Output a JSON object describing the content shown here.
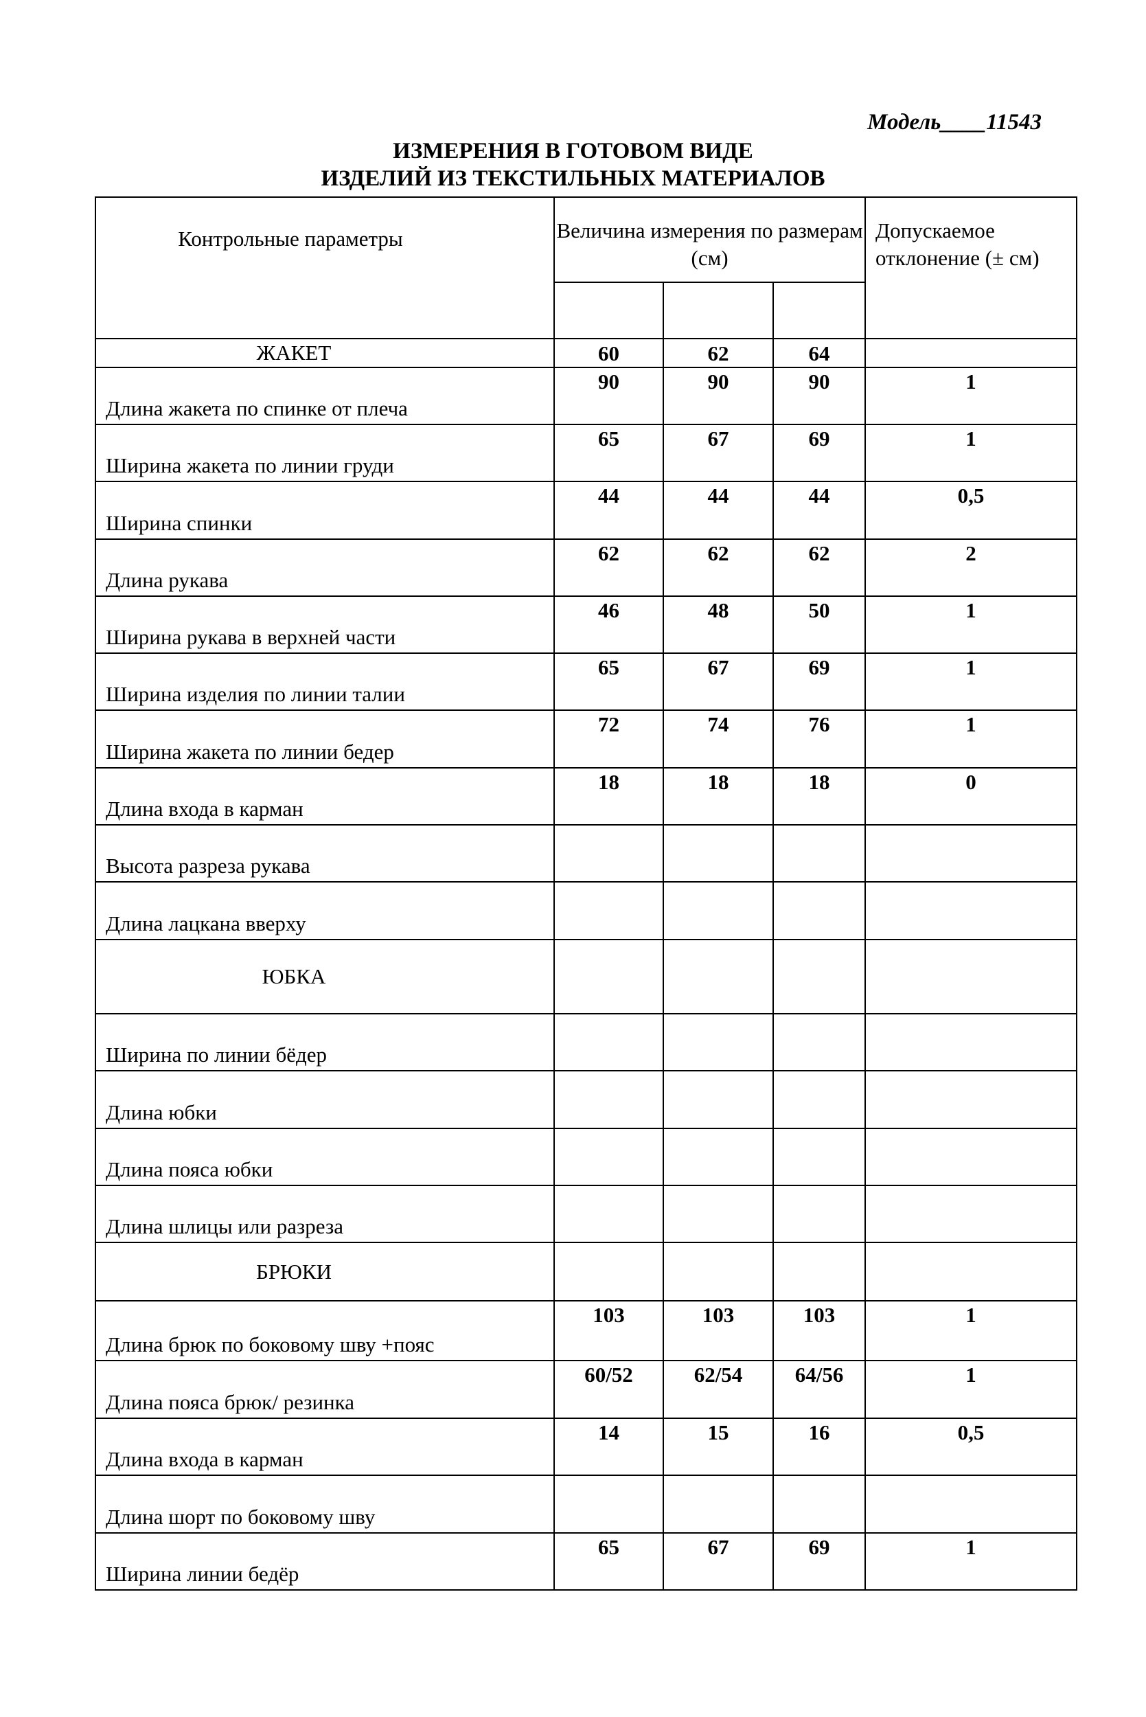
{
  "model": "Модель____11543",
  "title_line1": "ИЗМЕРЕНИЯ  В  ГОТОВОМ  ВИДЕ",
  "title_line2": "ИЗДЕЛИЙ ИЗ ТЕКСТИЛЬНЫХ  МАТЕРИАЛОВ",
  "header": {
    "params": "Контрольные параметры",
    "sizes": "Величина измерения по размерам (см)",
    "tolerance": "Допускаемое отклонение (± см)"
  },
  "rows": [
    {
      "type": "section",
      "label": "ЖАКЕТ",
      "values": [
        "60",
        "62",
        "64"
      ],
      "tol": ""
    },
    {
      "label": "Длина жакета по  спинке от плеча",
      "values": [
        "90",
        "90",
        "90"
      ],
      "tol": "1"
    },
    {
      "label": "Ширина  жакета по линии груди",
      "values": [
        "65",
        "67",
        "69"
      ],
      "tol": "1"
    },
    {
      "label": "Ширина  спинки",
      "values": [
        "44",
        "44",
        "44"
      ],
      "tol": "0,5"
    },
    {
      "label": "Длина рукава",
      "values": [
        "62",
        "62",
        "62"
      ],
      "tol": "2"
    },
    {
      "label": "Ширина рукава в верхней части",
      "values": [
        "46",
        "48",
        "50"
      ],
      "tol": "1"
    },
    {
      "label": "Ширина изделия по линии талии",
      "values": [
        "65",
        "67",
        "69"
      ],
      "tol": "1"
    },
    {
      "label": "Ширина жакета по линии бедер",
      "values": [
        "72",
        "74",
        "76"
      ],
      "tol": "1"
    },
    {
      "label": "Длина входа в карман",
      "values": [
        "18",
        "18",
        "18"
      ],
      "tol": "0"
    },
    {
      "label": "Высота разреза рукава",
      "values": [
        "",
        "",
        ""
      ],
      "tol": ""
    },
    {
      "label": "Длина лацкана вверху",
      "values": [
        "",
        "",
        ""
      ],
      "tol": ""
    },
    {
      "type": "section",
      "label": "ЮБКА",
      "values": [
        "",
        "",
        ""
      ],
      "tol": ""
    },
    {
      "label": "Ширина  по линии бёдер",
      "values": [
        "",
        "",
        ""
      ],
      "tol": ""
    },
    {
      "label": "Длина юбки",
      "values": [
        "",
        "",
        ""
      ],
      "tol": ""
    },
    {
      "label": "Длина пояса юбки",
      "values": [
        "",
        "",
        ""
      ],
      "tol": ""
    },
    {
      "label": "Длина шлицы или разреза",
      "values": [
        "",
        "",
        ""
      ],
      "tol": ""
    },
    {
      "type": "section",
      "label": "БРЮКИ",
      "values": [
        "",
        "",
        ""
      ],
      "tol": ""
    },
    {
      "label": "Длина брюк по  боковому шву +пояс",
      "values": [
        "103",
        "103",
        "103"
      ],
      "tol": "1"
    },
    {
      "label": "Длина пояса брюк/ резинка",
      "values": [
        "60/52",
        "62/54",
        "64/56"
      ],
      "tol": "1"
    },
    {
      "label": "Длина входа в карман",
      "values": [
        "14",
        "15",
        "16"
      ],
      "tol": "0,5"
    },
    {
      "label": "Длина шорт по боковому шву",
      "values": [
        "",
        "",
        ""
      ],
      "tol": ""
    },
    {
      "label": "Ширина линии бедёр",
      "values": [
        "65",
        "67",
        "69"
      ],
      "tol": "1"
    }
  ]
}
